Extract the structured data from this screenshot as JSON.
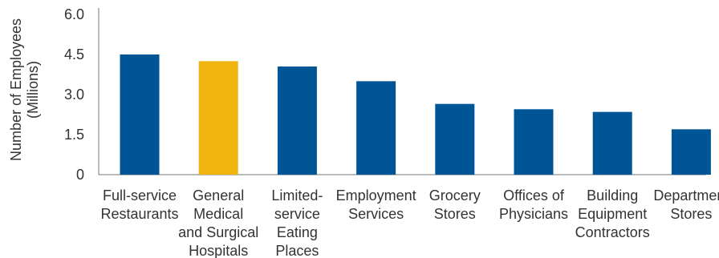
{
  "chart_data": {
    "type": "bar",
    "title": "",
    "xlabel": "",
    "ylabel": [
      "Number of Employees",
      "(Millions)"
    ],
    "ylim": [
      0,
      6.0
    ],
    "yticks": [
      "0",
      "1.5",
      "3.0",
      "4.5",
      "6.0"
    ],
    "ytick_values": [
      0,
      1.5,
      3.0,
      4.5,
      6.0
    ],
    "grid": false,
    "categories": [
      [
        "Full-service",
        "Restaurants"
      ],
      [
        "General",
        "Medical",
        "and Surgical",
        "Hospitals"
      ],
      [
        "Limited-",
        "service",
        "Eating",
        "Places"
      ],
      [
        "Employment",
        "Services"
      ],
      [
        "Grocery",
        "Stores"
      ],
      [
        "Offices of",
        "Physicians"
      ],
      [
        "Building",
        "Equipment",
        "Contractors"
      ],
      [
        "Department",
        "Stores"
      ]
    ],
    "values": [
      4.5,
      4.25,
      4.05,
      3.5,
      2.65,
      2.45,
      2.35,
      1.7
    ],
    "colors": {
      "default": "#005596",
      "highlight": "#f0b510"
    },
    "highlight_index": 1
  }
}
